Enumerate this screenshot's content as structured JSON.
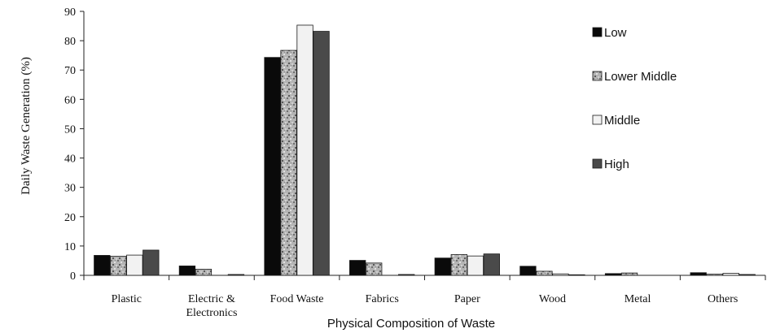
{
  "chart_data": {
    "type": "bar",
    "title": "",
    "xlabel": "Physical Composition of Waste",
    "ylabel": "Daily Waste Generation (%)",
    "ylim": [
      0,
      90
    ],
    "yticks": [
      0,
      10,
      20,
      30,
      40,
      50,
      60,
      70,
      80,
      90
    ],
    "legend_position": "right",
    "categories": [
      [
        "Plastic"
      ],
      [
        "Electric &",
        "Electronics"
      ],
      [
        "Food Waste"
      ],
      [
        "Fabrics"
      ],
      [
        "Paper"
      ],
      [
        "Wood"
      ],
      [
        "Metal"
      ],
      [
        "Others"
      ]
    ],
    "series": [
      {
        "name": "Low",
        "color": "#0a0a0a",
        "pattern": "solid",
        "values": [
          6.8,
          3.2,
          74.3,
          5.1,
          5.9,
          3.1,
          0.6,
          0.9
        ]
      },
      {
        "name": "Lower Middle",
        "color": "#a8a8a8",
        "pattern": "speckle",
        "values": [
          6.5,
          2.1,
          76.7,
          4.2,
          7.1,
          1.4,
          0.8,
          0.4
        ]
      },
      {
        "name": "Middle",
        "color": "#f2f2f2",
        "pattern": "solid",
        "values": [
          6.9,
          0.0,
          85.3,
          0.0,
          6.6,
          0.5,
          0.0,
          0.7
        ]
      },
      {
        "name": "High",
        "color": "#4a4a4a",
        "pattern": "solid",
        "values": [
          8.6,
          0.3,
          83.2,
          0.3,
          7.3,
          0.2,
          0.0,
          0.3
        ]
      }
    ]
  }
}
